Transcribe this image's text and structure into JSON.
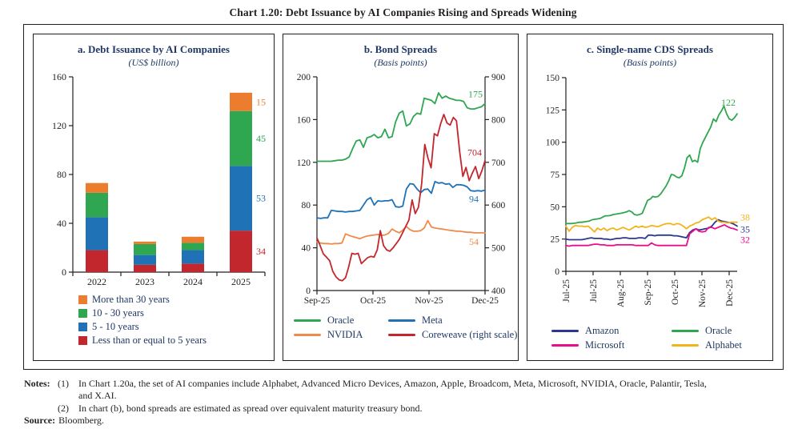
{
  "page": {
    "title": "Chart 1.20: Debt Issuance by AI Companies Rising and Spreads Widening"
  },
  "panels": [
    {
      "title": "a. Debt Issuance by AI Companies",
      "subtitle": "(US$ billion)"
    },
    {
      "title": "b. Bond Spreads",
      "subtitle": "(Basis points)"
    },
    {
      "title": "c. Single-name CDS Spreads",
      "subtitle": "(Basis points)"
    }
  ],
  "chart_data": [
    {
      "id": "debt-issuance-by-ai-companies",
      "type": "bar",
      "stacked": true,
      "title": "a. Debt Issuance by AI Companies",
      "subtitle": "(US$ billion)",
      "unit": "US$ billion",
      "categories": [
        "2022",
        "2023",
        "2024",
        "2025"
      ],
      "ylim": [
        0,
        160
      ],
      "yticks": [
        0,
        40,
        80,
        120,
        160
      ],
      "series": [
        {
          "name": "Less than or equal to 5 years",
          "color": "#C2272D",
          "values": [
            18,
            6,
            7,
            34
          ]
        },
        {
          "name": "5 - 10 years",
          "color": "#1F72B6",
          "values": [
            27,
            8,
            11,
            53
          ]
        },
        {
          "name": "10 - 30 years",
          "color": "#2FA650",
          "values": [
            20,
            9,
            6,
            45
          ]
        },
        {
          "name": "More than 30 years",
          "color": "#ED7D2E",
          "values": [
            8,
            2,
            5,
            15
          ]
        }
      ],
      "value_labels": {
        "category": "2025",
        "labels": [
          {
            "text": "34",
            "color": "#C2272D"
          },
          {
            "text": "53",
            "color": "#1F72B6"
          },
          {
            "text": "45",
            "color": "#2FA650"
          },
          {
            "text": "15",
            "color": "#ED7D2E"
          }
        ]
      },
      "legend": [
        {
          "label": "More than 30 years",
          "color": "#ED7D2E"
        },
        {
          "label": "10 - 30 years",
          "color": "#2FA650"
        },
        {
          "label": "5 - 10 years",
          "color": "#1F72B6"
        },
        {
          "label": "Less than or equal to 5 years",
          "color": "#C2272D"
        }
      ]
    },
    {
      "id": "bond-spreads",
      "type": "line",
      "title": "b. Bond Spreads",
      "subtitle": "(Basis points)",
      "unit": "Basis points",
      "x_labels": [
        "Sep-25",
        "Oct-25",
        "Nov-25",
        "Dec-25"
      ],
      "ylim_left": [
        0,
        200
      ],
      "yticks_left": [
        0,
        40,
        80,
        120,
        160,
        200
      ],
      "ylim_right": [
        400,
        900
      ],
      "yticks_right": [
        400,
        500,
        600,
        700,
        800,
        900
      ],
      "series": [
        {
          "name": "Oracle",
          "color": "#2FA650",
          "axis": "left",
          "end_label": "175",
          "values": [
            121,
            121,
            121,
            121,
            121,
            121.5,
            122,
            122,
            123,
            125,
            133,
            140,
            141,
            134,
            143,
            144,
            146,
            143,
            144,
            151,
            143,
            144,
            158,
            166,
            168,
            154,
            156,
            163,
            166,
            165,
            180,
            179,
            178,
            175,
            185,
            180,
            182,
            180,
            179,
            178,
            178,
            177,
            171,
            170,
            170,
            171,
            172,
            175
          ]
        },
        {
          "name": "Meta",
          "color": "#1F72B6",
          "axis": "left",
          "end_label": "94",
          "values": [
            68,
            67.5,
            68,
            68,
            75,
            74.5,
            74,
            74,
            73.5,
            74,
            74,
            74.5,
            75,
            80,
            85,
            87,
            80,
            84,
            83.5,
            84,
            84,
            85,
            78.5,
            78,
            79,
            95,
            100,
            99.5,
            95,
            91.5,
            94.5,
            95,
            91,
            102,
            100.5,
            101,
            99.5,
            100,
            96.5,
            99,
            99,
            98.5,
            97,
            93.5,
            93,
            93.5,
            93,
            94
          ]
        },
        {
          "name": "NVIDIA",
          "color": "#F08A4B",
          "axis": "left",
          "end_label": "54",
          "values": [
            45.5,
            44.5,
            44,
            44,
            43.5,
            44,
            44,
            44.5,
            53,
            51.5,
            50.5,
            49.5,
            48.5,
            50,
            51,
            51.5,
            52,
            52.5,
            51.5,
            52,
            53.5,
            57.5,
            55.5,
            54,
            56.5,
            60,
            57,
            55.5,
            55.5,
            56,
            58.5,
            65.5,
            59.5,
            58.5,
            58,
            57.5,
            57,
            56.5,
            56,
            55.5,
            55.5,
            55,
            54.5,
            54.5,
            54,
            54,
            54,
            54
          ]
        },
        {
          "name": "Coreweave (right scale)",
          "color": "#C2272D",
          "axis": "right",
          "end_label": "704",
          "values": [
            523,
            505,
            486,
            478,
            470,
            445,
            432,
            425,
            423,
            430,
            455,
            487,
            485,
            487,
            463,
            470,
            477,
            480,
            478,
            495,
            540,
            505,
            495,
            492,
            500,
            510,
            520,
            535,
            550,
            565,
            612,
            580,
            595,
            650,
            742,
            710,
            687,
            767,
            762,
            790,
            812,
            792,
            787,
            805,
            797,
            725,
            667,
            688,
            657,
            675,
            690,
            662,
            680,
            704
          ]
        }
      ],
      "legend": [
        {
          "label": "Oracle",
          "color": "#2FA650"
        },
        {
          "label": "Meta",
          "color": "#1F72B6"
        },
        {
          "label": "NVIDIA",
          "color": "#F08A4B"
        },
        {
          "label": "Coreweave (right scale)",
          "color": "#C2272D"
        }
      ]
    },
    {
      "id": "single-name-cds-spreads",
      "type": "line",
      "title": "c. Single-name CDS Spreads",
      "subtitle": "(Basis points)",
      "unit": "Basis points",
      "x_labels": [
        "Jul-25",
        "Jul-25",
        "Aug-25",
        "Sep-25",
        "Oct-25",
        "Nov-25",
        "Dec-25"
      ],
      "x_labels_rotated": true,
      "ylim_left": [
        0,
        150
      ],
      "yticks_left": [
        0,
        25,
        50,
        75,
        100,
        125,
        150
      ],
      "series": [
        {
          "name": "Amazon",
          "color": "#2D3690",
          "axis": "left",
          "end_label": "35",
          "values": [
            25,
            24.5,
            24.5,
            24.5,
            24.5,
            24.5,
            25,
            25.5,
            26,
            25.5,
            25.5,
            25.5,
            25,
            25,
            24.5,
            25,
            25.5,
            25.5,
            26,
            26,
            25.5,
            25.5,
            25.5,
            26,
            26,
            25.5,
            28,
            28,
            27.5,
            28,
            28,
            28,
            28,
            28,
            27.5,
            27.5,
            27,
            26.5,
            26,
            30,
            32,
            33,
            32,
            32.5,
            33,
            33.5,
            35,
            38,
            40,
            39,
            38.5,
            38,
            37.5,
            36.5,
            35
          ]
        },
        {
          "name": "Microsoft",
          "color": "#EB0D8C",
          "axis": "left",
          "end_label": "32",
          "values": [
            20,
            19.5,
            20,
            20,
            20,
            20,
            20,
            20,
            20.5,
            21,
            21,
            20.5,
            20.5,
            20,
            20,
            20,
            20.5,
            20.5,
            20.5,
            20.5,
            20.5,
            20.5,
            20,
            20,
            20,
            20,
            20,
            22,
            20.5,
            20,
            20,
            20,
            20,
            20,
            20,
            20,
            20,
            20,
            20,
            29,
            31,
            33,
            31,
            30.5,
            31,
            34,
            34,
            33,
            34,
            35,
            36,
            34.5,
            33.5,
            33,
            32
          ]
        },
        {
          "name": "Alphabet",
          "color": "#F3B31B",
          "axis": "left",
          "end_label": "38",
          "values": [
            35,
            31,
            34,
            35.5,
            35,
            35,
            34.5,
            35,
            33,
            30.5,
            33.5,
            32,
            33.5,
            31.5,
            33,
            33.5,
            32,
            33,
            34,
            33,
            32,
            33.5,
            35,
            34,
            35,
            34,
            34.5,
            35.5,
            35,
            34.5,
            35.5,
            36.5,
            37,
            37,
            36,
            37,
            36.5,
            35,
            33,
            35,
            36,
            37.5,
            38,
            40,
            41,
            42,
            40,
            41.5,
            39,
            38,
            38,
            37.5,
            38,
            38,
            38
          ]
        },
        {
          "name": "Oracle",
          "color": "#2FA650",
          "axis": "left",
          "end_label": "122",
          "values": [
            37,
            37,
            37,
            37.2,
            37.5,
            38,
            38,
            38.3,
            38.7,
            39,
            40,
            40.3,
            40.6,
            41,
            42,
            43,
            43,
            43.3,
            44,
            44.3,
            44.6,
            45,
            45.5,
            46,
            47,
            46,
            44,
            43.5,
            44,
            45,
            50,
            55,
            56,
            58,
            57.5,
            58,
            60,
            63,
            66,
            70,
            75,
            74.5,
            73,
            72.5,
            74,
            80,
            88,
            90,
            85,
            86,
            84.5,
            95,
            100,
            104,
            108,
            112,
            118,
            116,
            121,
            124,
            128,
            122,
            118,
            117,
            119,
            122
          ]
        }
      ],
      "legend": [
        {
          "label": "Amazon",
          "color": "#2D3690"
        },
        {
          "label": "Oracle",
          "color": "#2FA650"
        },
        {
          "label": "Microsoft",
          "color": "#EB0D8C"
        },
        {
          "label": "Alphabet",
          "color": "#F3B31B"
        }
      ]
    }
  ],
  "notes": {
    "label": "Notes:",
    "items": [
      {
        "num": "(1)",
        "lines": [
          "In Chart 1.20a, the set of AI companies include Alphabet, Advanced Micro Devices, Amazon, Apple, Broadcom, Meta, Microsoft, NVIDIA, Oracle, Palantir, Tesla,",
          "and X.AI."
        ]
      },
      {
        "num": "(2)",
        "lines": [
          "In chart (b), bond spreads are estimated as spread over equivalent maturity treasury bond.",
          ""
        ]
      }
    ],
    "source_label": "Source:",
    "source_text": "Bloomberg."
  }
}
